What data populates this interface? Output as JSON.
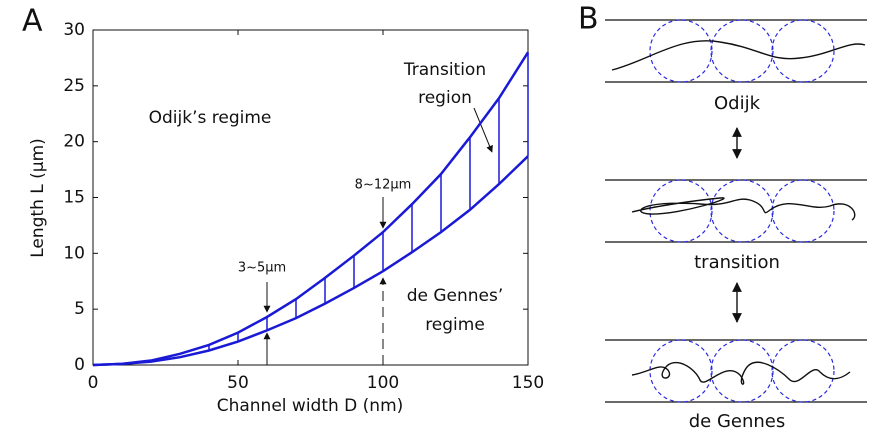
{
  "chart_data": {
    "type": "line",
    "panel_label": "A",
    "xlabel": "Channel width D (nm)",
    "ylabel": "Length L (μm)",
    "x": [
      0,
      10,
      20,
      30,
      40,
      50,
      60,
      70,
      80,
      90,
      100,
      110,
      120,
      130,
      140,
      150
    ],
    "series": [
      {
        "color": "#1a1ad6",
        "values": [
          0,
          0.1,
          0.4,
          1.0,
          1.8,
          2.9,
          4.3,
          5.9,
          7.8,
          9.8,
          11.9,
          14.4,
          17.1,
          20.4,
          23.9,
          28.0
        ]
      },
      {
        "color": "#1a1ad6",
        "values": [
          0,
          0.1,
          0.3,
          0.7,
          1.3,
          2.1,
          3.1,
          4.2,
          5.5,
          6.9,
          8.4,
          10.1,
          11.9,
          13.9,
          16.2,
          18.7
        ]
      }
    ],
    "xlim": [
      0,
      150
    ],
    "xticks": [
      0,
      50,
      100,
      150
    ],
    "ylim": [
      0,
      30
    ],
    "yticks": [
      0,
      5,
      10,
      15,
      20,
      25,
      30
    ],
    "annotations": {
      "odijk": "Odijk’s regime",
      "transition": [
        "Transition",
        "region"
      ],
      "degennes": [
        "de Gennes’",
        "regime"
      ],
      "range_high": "8~12μm",
      "range_low": "3~5μm"
    }
  },
  "diagram": {
    "panel_label": "B",
    "captions": [
      "Odijk",
      "transition",
      "de Gennes"
    ]
  }
}
